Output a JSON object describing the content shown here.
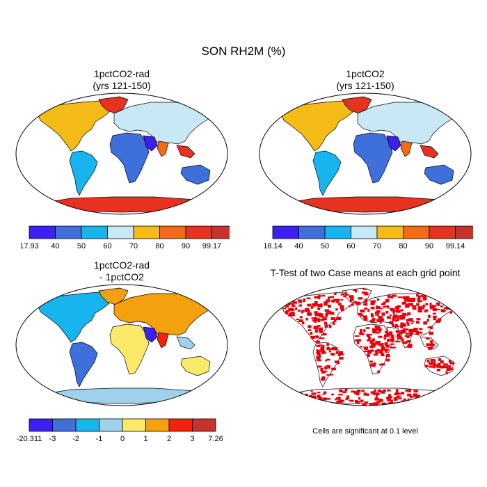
{
  "figure": {
    "title": "SON RH2M (%)"
  },
  "panels": [
    {
      "id": "top-left",
      "title_line1": "1pctCO2-rad",
      "title_line2": "(yrs 121-150)",
      "type": "filled-contour-map"
    },
    {
      "id": "top-right",
      "title_line1": "1pctCO2",
      "title_line2": "(yrs 121-150)",
      "type": "filled-contour-map"
    },
    {
      "id": "bottom-left",
      "title_line1": "1pctCO2-rad",
      "title_line2": "- 1pctCO2",
      "type": "difference-map"
    },
    {
      "id": "bottom-right",
      "title_line1": "T-Test of two Case means at each grid point",
      "title_line2": "",
      "type": "significance-map"
    }
  ],
  "colorbars": {
    "top_left": {
      "labels": [
        "17.93",
        "40",
        "50",
        "60",
        "70",
        "80",
        "90",
        "99.17"
      ],
      "colors": [
        "#3b20f0",
        "#3f6fdb",
        "#17b4f0",
        "#c8e8f5",
        "#f5bb16",
        "#f26c14",
        "#e6321e",
        "#c8322d"
      ]
    },
    "top_right": {
      "labels": [
        "18.14",
        "40",
        "50",
        "60",
        "70",
        "80",
        "90",
        "99.14"
      ],
      "colors": [
        "#3b20f0",
        "#3f6fdb",
        "#17b4f0",
        "#c8e8f5",
        "#f5bb16",
        "#f26c14",
        "#e6321e",
        "#c8322d"
      ]
    },
    "bottom_left": {
      "labels": [
        "-20.311",
        "-3",
        "-2",
        "-1",
        "0",
        "1",
        "2",
        "3",
        "7.26"
      ],
      "colors": [
        "#3b20f0",
        "#3f6fdb",
        "#17b4f0",
        "#9fd1ec",
        "#fbe96a",
        "#f5a10f",
        "#f5210a",
        "#c8322d"
      ]
    }
  },
  "significance_note": "Cells are significant at 0.1 level"
}
